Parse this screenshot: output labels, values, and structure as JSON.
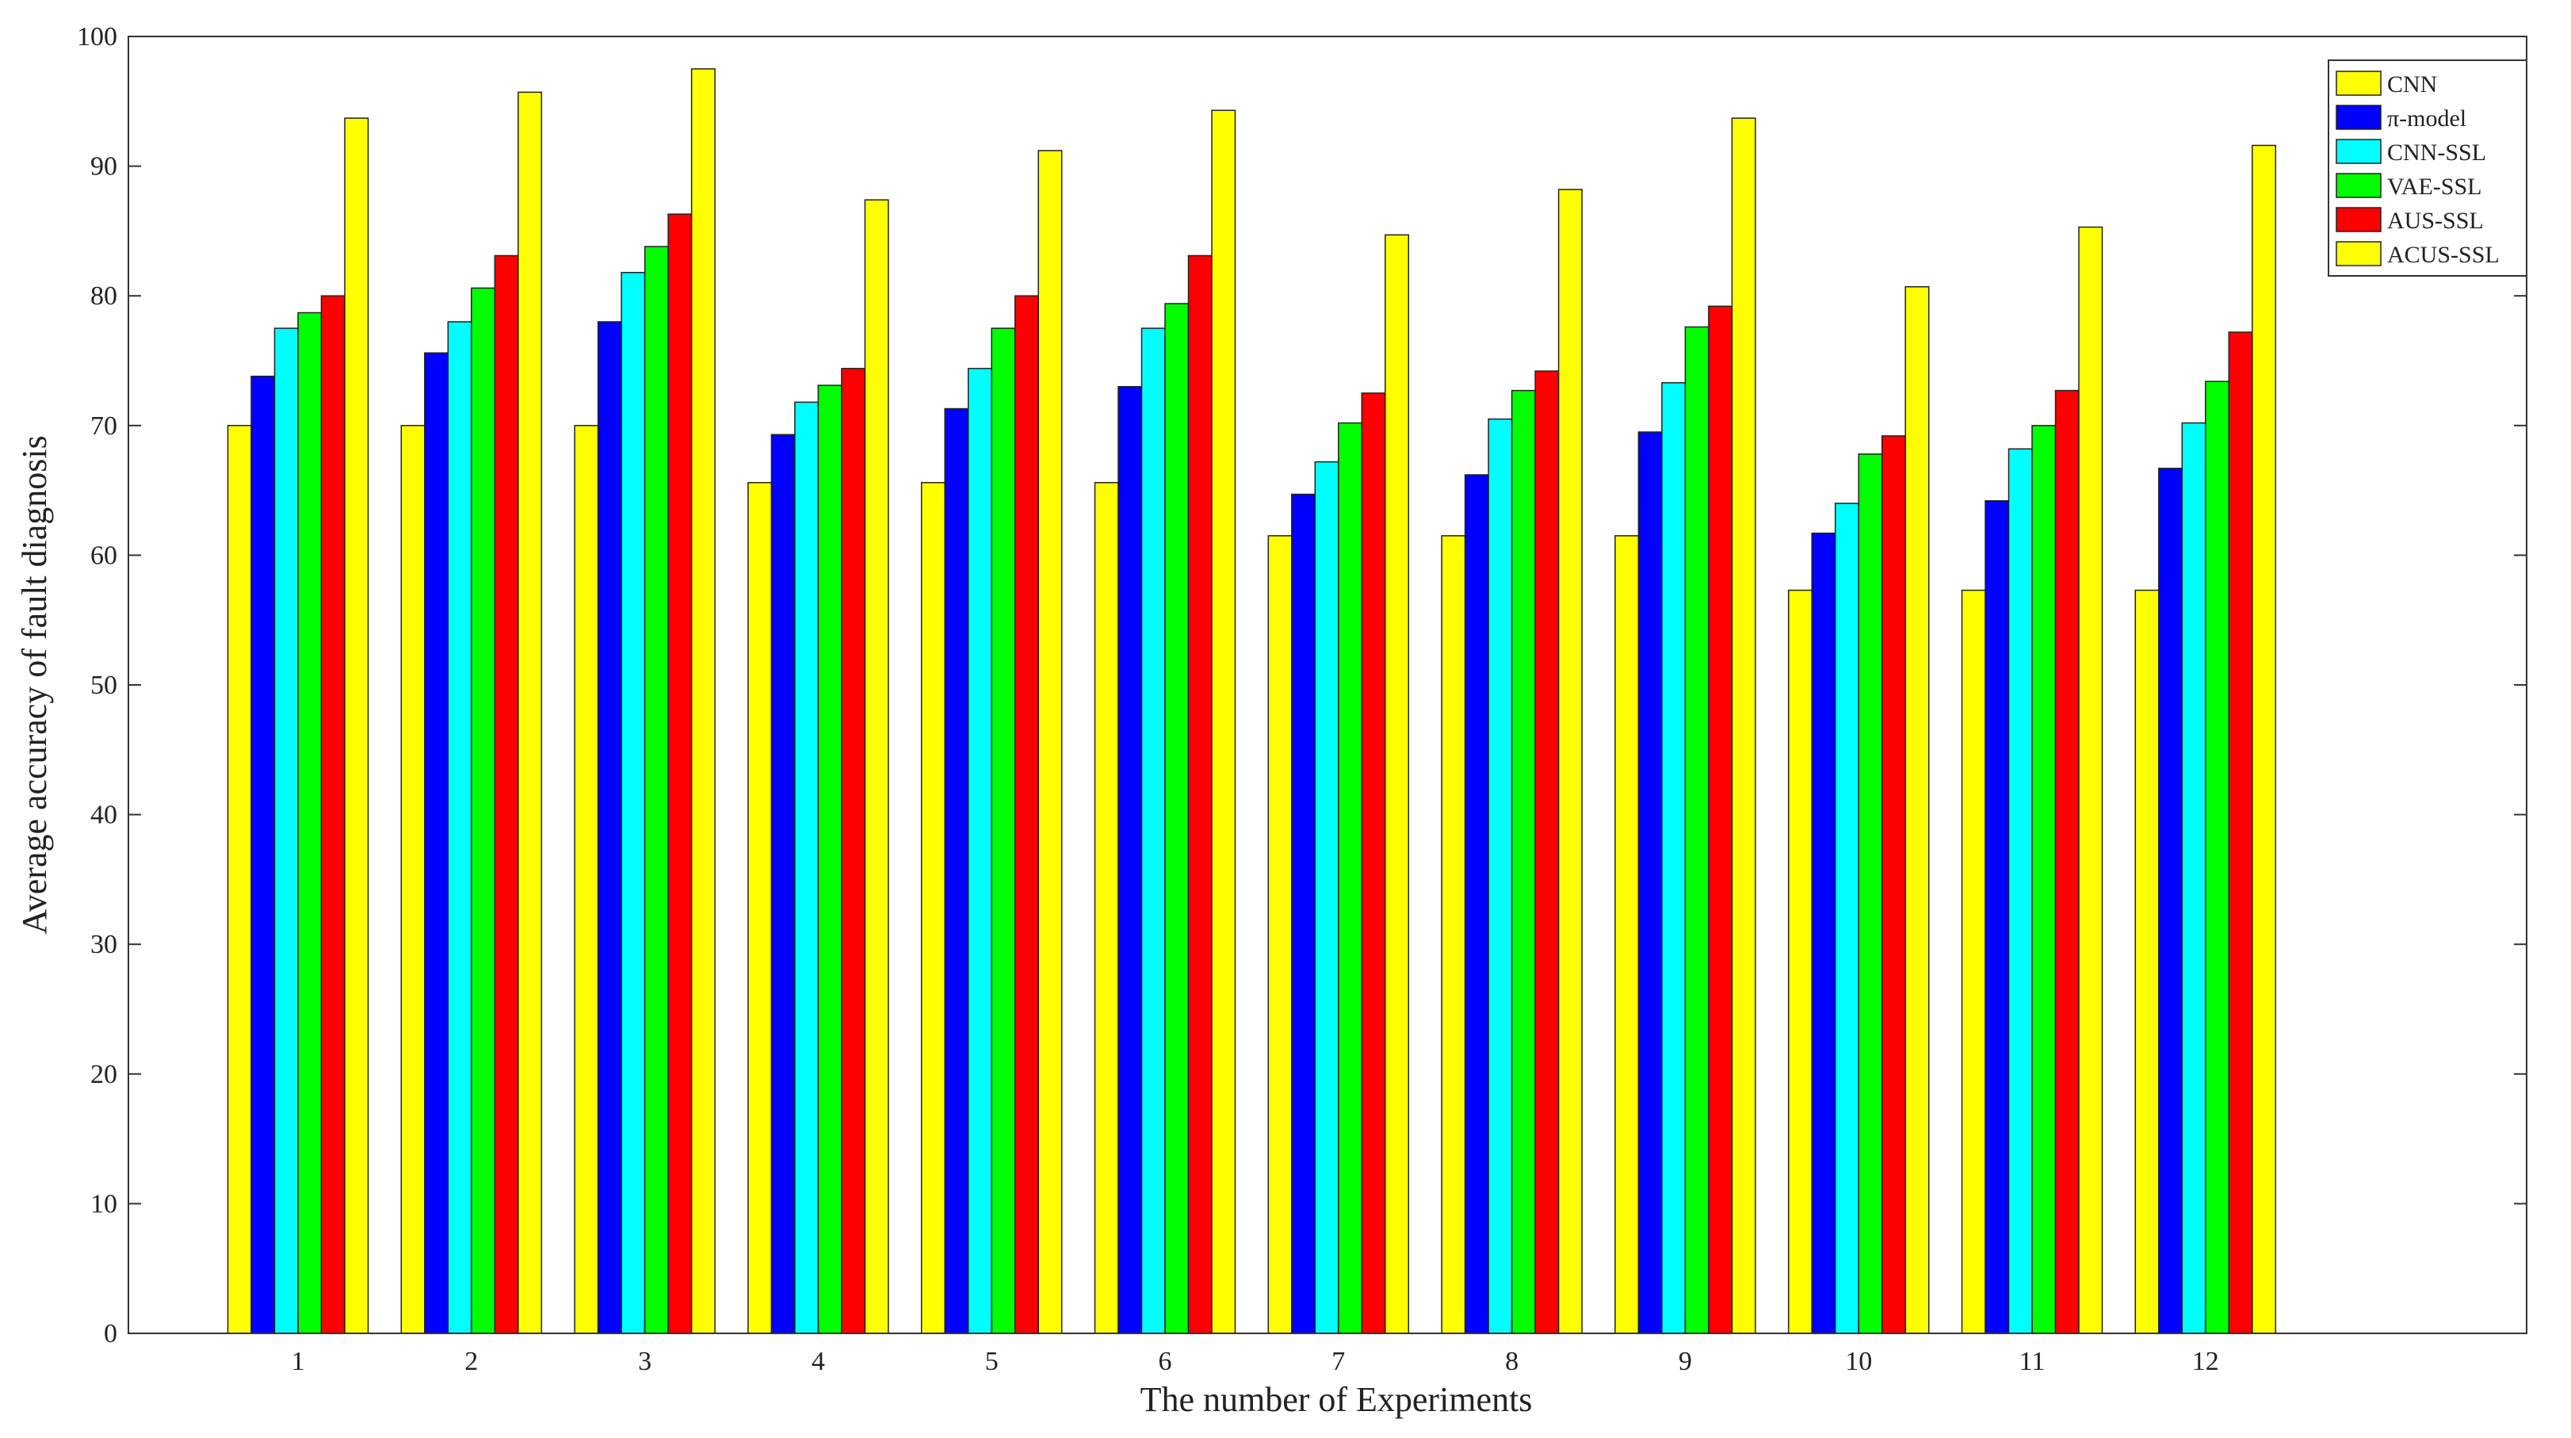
{
  "chart_data": {
    "type": "bar",
    "title": "",
    "xlabel": "The number of Experiments",
    "ylabel": "Average accuracy of fault diagnosis",
    "categories": [
      "1",
      "2",
      "3",
      "4",
      "5",
      "6",
      "7",
      "8",
      "9",
      "10",
      "11",
      "12"
    ],
    "ylim": [
      0,
      100
    ],
    "yticks": [
      "0",
      "10",
      "20",
      "30",
      "40",
      "50",
      "60",
      "70",
      "80",
      "90",
      "100"
    ],
    "grid": false,
    "legend_position": "top-right",
    "series": [
      {
        "name": "CNN",
        "color": "#ffff00",
        "values": [
          70.0,
          70.0,
          70.0,
          65.6,
          65.6,
          65.6,
          61.5,
          61.5,
          61.5,
          57.3,
          57.3,
          57.3
        ]
      },
      {
        "name": "π-model",
        "color": "#0000ff",
        "values": [
          73.8,
          75.6,
          78.0,
          69.3,
          71.3,
          73.0,
          64.7,
          66.2,
          69.5,
          61.7,
          64.2,
          66.7
        ]
      },
      {
        "name": "CNN-SSL",
        "color": "#00ffff",
        "values": [
          77.5,
          78.0,
          81.8,
          71.8,
          74.4,
          77.5,
          67.2,
          70.5,
          73.3,
          64.0,
          68.2,
          70.2
        ]
      },
      {
        "name": "VAE-SSL",
        "color": "#00ff00",
        "values": [
          78.7,
          80.6,
          83.8,
          73.1,
          77.5,
          79.4,
          70.2,
          72.7,
          77.6,
          67.8,
          70.0,
          73.4
        ]
      },
      {
        "name": "AUS-SSL",
        "color": "#ff0000",
        "values": [
          80.0,
          83.1,
          86.3,
          74.4,
          80.0,
          83.1,
          72.5,
          74.2,
          79.2,
          69.2,
          72.7,
          77.2
        ]
      },
      {
        "name": "ACUS-SSL",
        "color": "#ffff00",
        "values": [
          93.7,
          95.7,
          97.5,
          87.4,
          91.2,
          94.3,
          84.7,
          88.2,
          93.7,
          80.7,
          85.3,
          91.6
        ]
      }
    ]
  }
}
